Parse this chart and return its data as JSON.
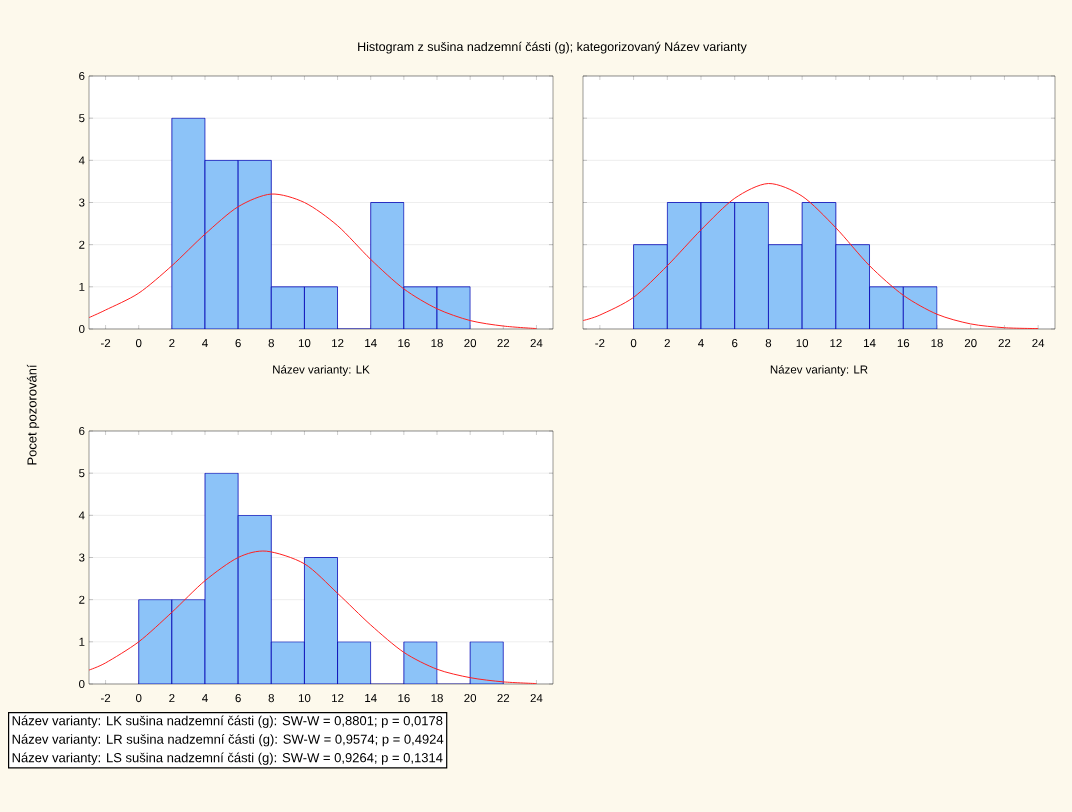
{
  "chart_data": [
    {
      "type": "histogram",
      "title": "Histogram z sušina nadzemní části (g); kategorizovaný Název varianty",
      "ylabel": "Pocet pozorování",
      "xlabel": "Název varianty: LK",
      "xlim": [
        -3,
        25
      ],
      "ylim": [
        0,
        6
      ],
      "xticks": [
        -2,
        0,
        2,
        4,
        6,
        8,
        10,
        12,
        14,
        16,
        18,
        20,
        22,
        24
      ],
      "yticks": [
        0,
        1,
        2,
        3,
        4,
        5,
        6
      ],
      "grid": "y",
      "color": "#8cc3f8",
      "bins": [
        2,
        4,
        6,
        8,
        10,
        12,
        14,
        16,
        18,
        20
      ],
      "values": [
        5,
        4,
        4,
        1,
        1,
        0,
        3,
        1,
        1
      ],
      "series": [
        {
          "type": "line",
          "color": "#ff2020",
          "x": [
            -3,
            -2,
            0,
            2,
            4,
            6,
            8,
            10,
            12,
            14,
            16,
            18,
            20,
            22,
            24
          ],
          "values": [
            0.27,
            0.45,
            0.85,
            1.5,
            2.25,
            2.9,
            3.2,
            3.0,
            2.45,
            1.65,
            0.95,
            0.48,
            0.2,
            0.07,
            0.01
          ]
        }
      ]
    },
    {
      "type": "histogram",
      "xlabel": "Název varianty: LR",
      "xlim": [
        -3,
        25
      ],
      "ylim": [
        0,
        6
      ],
      "xticks": [
        -2,
        0,
        2,
        4,
        6,
        8,
        10,
        12,
        14,
        16,
        18,
        20,
        22,
        24
      ],
      "yticks": [
        0,
        1,
        2,
        3,
        4,
        5,
        6
      ],
      "grid": "y",
      "tick_labels": "x",
      "color": "#8cc3f8",
      "bins": [
        0,
        2,
        4,
        6,
        8,
        10,
        12,
        14,
        16,
        18
      ],
      "values": [
        2,
        3,
        3,
        3,
        2,
        3,
        2,
        1,
        1
      ],
      "series": [
        {
          "type": "line",
          "color": "#ff2020",
          "x": [
            -3,
            -2,
            0,
            2,
            4,
            6,
            8,
            10,
            12,
            14,
            16,
            18,
            20,
            22,
            24
          ],
          "values": [
            0.2,
            0.33,
            0.75,
            1.5,
            2.35,
            3.1,
            3.45,
            3.15,
            2.4,
            1.5,
            0.8,
            0.35,
            0.12,
            0.03,
            0.01
          ]
        }
      ]
    },
    {
      "type": "histogram",
      "xlim": [
        -3,
        25
      ],
      "ylim": [
        0,
        6
      ],
      "xticks": [
        -2,
        0,
        2,
        4,
        6,
        8,
        10,
        12,
        14,
        16,
        18,
        20,
        22,
        24
      ],
      "yticks": [
        0,
        1,
        2,
        3,
        4,
        5,
        6
      ],
      "grid": "y",
      "annotations": [
        "Název varianty: LK  sušina nadzemní části (g):   SW-W = 0,8801; p = 0,0178",
        "Název varianty: LR  sušina nadzemní části (g):   SW-W = 0,9574; p = 0,4924",
        "Název varianty: LS  sušina nadzemní části (g):   SW-W = 0,9264; p = 0,1314"
      ],
      "color": "#8cc3f8",
      "bins": [
        0,
        2,
        4,
        6,
        8,
        10,
        12,
        14,
        16,
        18,
        20,
        22
      ],
      "values": [
        2,
        2,
        5,
        4,
        1,
        3,
        1,
        0,
        1,
        0,
        1
      ],
      "series": [
        {
          "type": "line",
          "color": "#ff2020",
          "x": [
            -3,
            -2,
            0,
            2,
            4,
            6,
            7.7,
            10,
            12,
            14,
            16,
            18,
            20,
            22,
            24
          ],
          "values": [
            0.33,
            0.5,
            1.0,
            1.7,
            2.45,
            3.0,
            3.15,
            2.85,
            2.15,
            1.4,
            0.75,
            0.35,
            0.15,
            0.05,
            0.01
          ]
        }
      ]
    }
  ]
}
